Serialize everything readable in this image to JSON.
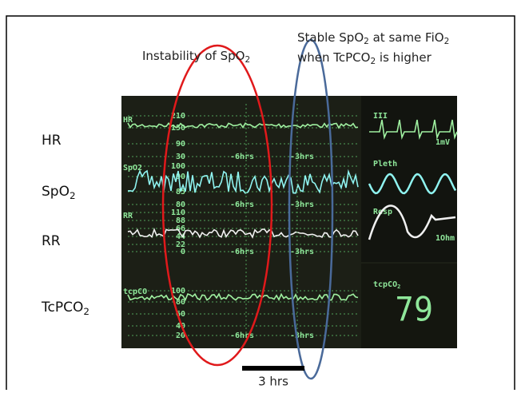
{
  "annotations": {
    "instability": [
      "Instability of SpO",
      "2"
    ],
    "stable_line1": [
      "Stable SpO",
      "2",
      " at same FiO",
      "2"
    ],
    "stable_line2": [
      "when TcPCO",
      "2",
      " is higher"
    ],
    "scale_bar": "3 hrs"
  },
  "row_labels": [
    [
      "HR"
    ],
    [
      "SpO",
      "2"
    ],
    [
      "RR"
    ],
    [
      "TcPCO",
      "2"
    ]
  ],
  "monitor": {
    "track_labels": [
      "HR",
      "SpO2",
      "RR",
      "tcpCO"
    ],
    "hr_scale": [
      "210",
      "150",
      "90",
      "30"
    ],
    "spo2_scale": [
      "100",
      "90",
      "85",
      "80"
    ],
    "rr_scale": [
      "110",
      "88",
      "66",
      "44",
      "22",
      "0"
    ],
    "tcpco2_scale": [
      "100",
      "80",
      "60",
      "40",
      "20"
    ],
    "time_marks": [
      "-6hrs",
      "-3hrs"
    ],
    "ecg_lead": "III",
    "ecg_unit": "1mV",
    "pleth": "Pleth",
    "resp": "Resp",
    "resp_unit": "1Ohm",
    "tcpco2_label": [
      "tcpCO",
      "2"
    ],
    "tcpco2_value": "79"
  }
}
